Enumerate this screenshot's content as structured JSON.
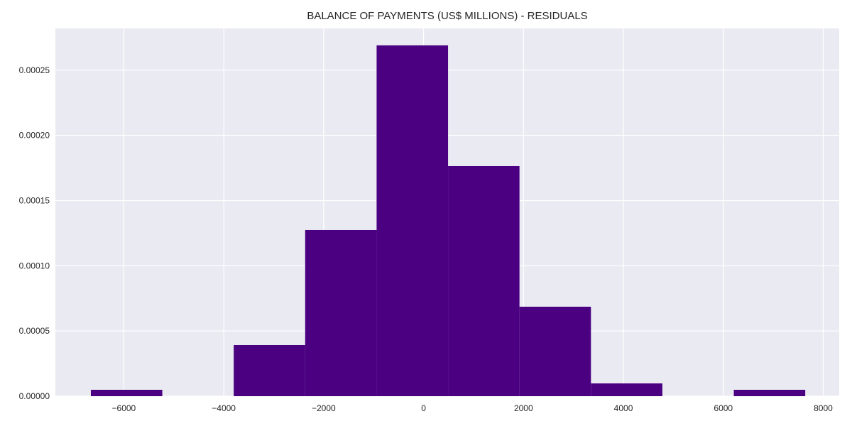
{
  "chart_data": {
    "type": "bar",
    "title": "BALANCE OF PAYMENTS (US$ MILLIONS) - RESIDUALS",
    "xlabel": "",
    "ylabel": "",
    "xlim": [
      -7370,
      8320
    ],
    "ylim": [
      0,
      0.000282
    ],
    "xticks": [
      -6000,
      -4000,
      -2000,
      0,
      2000,
      4000,
      6000,
      8000
    ],
    "xtick_labels": [
      "−6000",
      "−4000",
      "−2000",
      "0",
      "2000",
      "4000",
      "6000",
      "8000"
    ],
    "yticks": [
      0,
      5e-05,
      0.0001,
      0.00015,
      0.0002,
      0.00025
    ],
    "ytick_labels": [
      "0.00000",
      "0.00005",
      "0.00010",
      "0.00015",
      "0.00020",
      "0.00025"
    ],
    "grid": true,
    "bin_edges": [
      -6660,
      -5230,
      -3800,
      -2370,
      -940,
      490,
      1920,
      3350,
      4780,
      6210,
      7640
    ],
    "values": [
      4.9e-06,
      0,
      3.92e-05,
      0.0001274,
      0.000269,
      0.0001764,
      6.86e-05,
      9.8e-06,
      0,
      4.9e-06
    ],
    "bar_color": "#4b0082",
    "background_color": "#eaeaf2",
    "grid_color": "#ffffff"
  }
}
